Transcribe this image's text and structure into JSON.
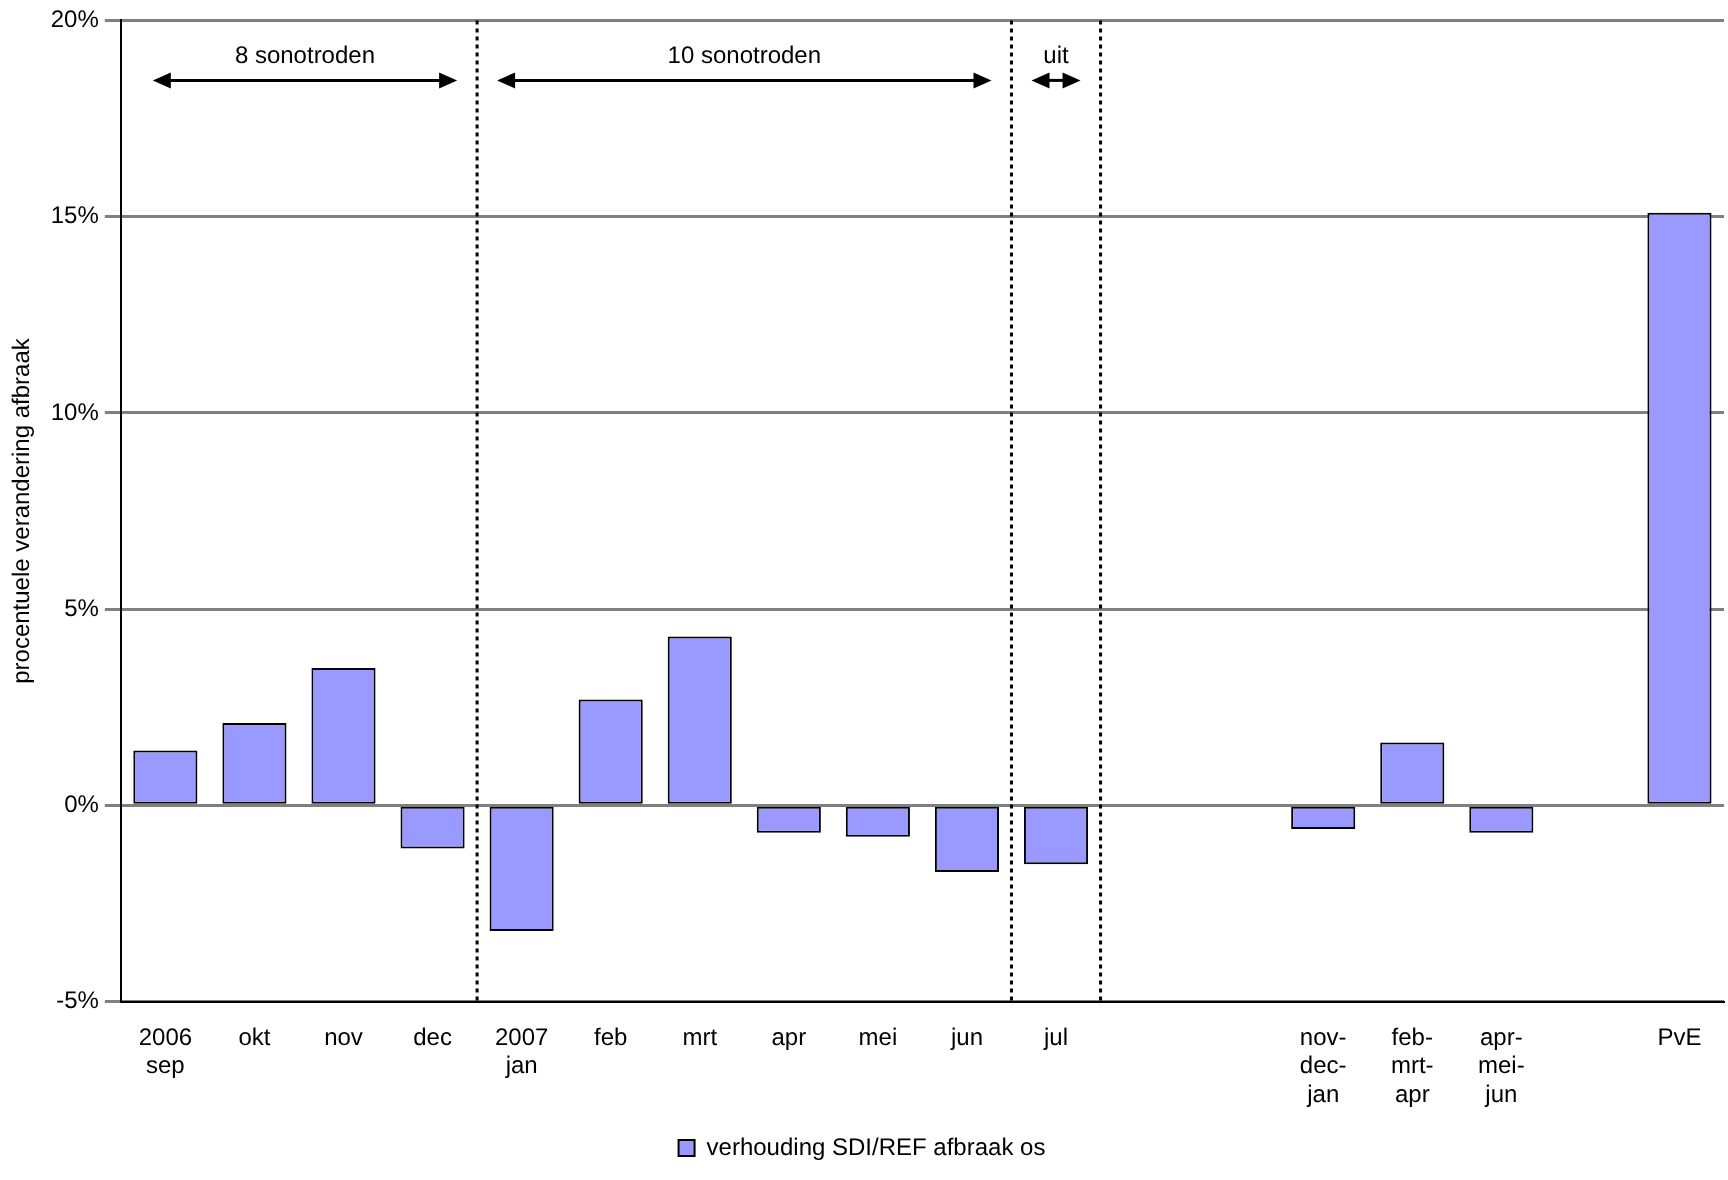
{
  "chart_data": {
    "type": "bar",
    "ylabel": "procentuele verandering afbraak",
    "categories": [
      "2006\nsep",
      "okt",
      "nov",
      "dec",
      "2007\njan",
      "feb",
      "mrt",
      "apr",
      "mei",
      "jun",
      "jul",
      null,
      null,
      "nov-\ndec-\njan",
      "feb-\nmrt-\napr",
      "apr-\nmei-\njun",
      null,
      "PvE"
    ],
    "series": [
      {
        "name": "verhouding SDI/REF afbraak os",
        "color": "#9999ff",
        "values": [
          1.4,
          2.1,
          3.5,
          -1.1,
          -3.2,
          2.7,
          4.3,
          -0.7,
          -0.8,
          -1.7,
          -1.5,
          null,
          null,
          -0.6,
          1.6,
          -0.7,
          null,
          15.1
        ]
      }
    ],
    "ylim": [
      -5,
      20
    ],
    "yticks": [
      {
        "value": -5,
        "label": "-5%"
      },
      {
        "value": 0,
        "label": "0%"
      },
      {
        "value": 5,
        "label": "5%"
      },
      {
        "value": 10,
        "label": "10%"
      },
      {
        "value": 15,
        "label": "15%"
      },
      {
        "value": 20,
        "label": "20%"
      }
    ],
    "annotations": [
      "8 sonotroden",
      "10 sonotroden",
      "uit"
    ],
    "grid": "y",
    "legend": "bottom"
  }
}
